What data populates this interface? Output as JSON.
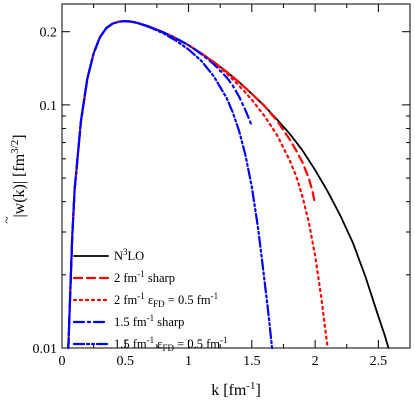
{
  "chart_data": {
    "type": "line",
    "xlabel": "k [fm",
    "xlabel_sup": "-1",
    "xlabel_end": "]",
    "ylabel": "|w(k)| [fm",
    "ylabel_sup": "3/2",
    "ylabel_end": "]",
    "xlim": [
      0,
      2.75
    ],
    "ylim": [
      0.01,
      0.26
    ],
    "y_scale": "log",
    "x_ticks": [
      {
        "value": 0,
        "label": "0"
      },
      {
        "value": 0.5,
        "label": "0.5"
      },
      {
        "value": 1,
        "label": "1"
      },
      {
        "value": 1.5,
        "label": "1.5"
      },
      {
        "value": 2,
        "label": "2"
      },
      {
        "value": 2.5,
        "label": "2.5"
      }
    ],
    "y_ticks": [
      {
        "value": 0.01,
        "label": "0.01"
      },
      {
        "value": 0.1,
        "label": "0.1"
      },
      {
        "value": 0.2,
        "label": "0.2"
      }
    ],
    "legend_position": "bottom-left",
    "series": [
      {
        "name": "N",
        "name_sup": "3",
        "name_end": "LO",
        "color": "#000000",
        "dash": "solid",
        "x": [
          0.05,
          0.08,
          0.1,
          0.15,
          0.2,
          0.25,
          0.3,
          0.35,
          0.4,
          0.45,
          0.5,
          0.55,
          0.6,
          0.7,
          0.8,
          0.9,
          1.0,
          1.1,
          1.2,
          1.3,
          1.4,
          1.5,
          1.6,
          1.7,
          1.8,
          1.9,
          2.0,
          2.1,
          2.2,
          2.3,
          2.4,
          2.5,
          2.55,
          2.58
        ],
        "y": [
          0.01,
          0.028,
          0.045,
          0.086,
          0.128,
          0.163,
          0.19,
          0.207,
          0.216,
          0.22,
          0.221,
          0.22,
          0.217,
          0.209,
          0.199,
          0.188,
          0.176,
          0.163,
          0.15,
          0.137,
          0.124,
          0.111,
          0.099,
          0.087,
          0.076,
          0.065,
          0.054,
          0.044,
          0.035,
          0.027,
          0.0195,
          0.0135,
          0.0113,
          0.01
        ]
      },
      {
        "name": "2 fm",
        "name_sup": "-1",
        "name_end": " sharp",
        "color": "#ff0000",
        "dash": "8,5",
        "x": [
          0.05,
          0.08,
          0.1,
          0.15,
          0.2,
          0.25,
          0.3,
          0.35,
          0.4,
          0.45,
          0.5,
          0.55,
          0.6,
          0.7,
          0.8,
          0.9,
          1.0,
          1.1,
          1.2,
          1.3,
          1.4,
          1.5,
          1.6,
          1.7,
          1.8,
          1.85,
          1.9,
          1.95,
          1.98,
          2.0
        ],
        "y": [
          0.01,
          0.028,
          0.045,
          0.086,
          0.128,
          0.163,
          0.19,
          0.207,
          0.216,
          0.22,
          0.221,
          0.22,
          0.217,
          0.209,
          0.199,
          0.188,
          0.176,
          0.163,
          0.15,
          0.137,
          0.124,
          0.111,
          0.099,
          0.086,
          0.072,
          0.065,
          0.058,
          0.05,
          0.044,
          0.039
        ]
      },
      {
        "name": "2 fm",
        "name_sup": "-1",
        "name_end": " ε",
        "name_sub": "FD",
        "name_tail": " = 0.5 fm",
        "name_tail_sup": "-1",
        "color": "#ff0000",
        "dash": "2,4",
        "x": [
          0.05,
          0.08,
          0.1,
          0.15,
          0.2,
          0.25,
          0.3,
          0.35,
          0.4,
          0.45,
          0.5,
          0.55,
          0.6,
          0.7,
          0.8,
          0.9,
          1.0,
          1.1,
          1.2,
          1.3,
          1.4,
          1.5,
          1.6,
          1.7,
          1.8,
          1.85,
          1.9,
          1.95,
          2.0,
          2.05,
          2.08,
          2.1
        ],
        "y": [
          0.01,
          0.028,
          0.045,
          0.086,
          0.128,
          0.163,
          0.19,
          0.207,
          0.216,
          0.22,
          0.221,
          0.22,
          0.217,
          0.209,
          0.199,
          0.188,
          0.176,
          0.163,
          0.149,
          0.135,
          0.12,
          0.105,
          0.09,
          0.075,
          0.059,
          0.051,
          0.042,
          0.033,
          0.024,
          0.016,
          0.012,
          0.01
        ]
      },
      {
        "name": "1.5 fm",
        "name_sup": "-1",
        "name_end": " sharp",
        "color": "#0000ff",
        "dash": "10,4,2,4",
        "x": [
          0.05,
          0.08,
          0.1,
          0.15,
          0.2,
          0.25,
          0.3,
          0.35,
          0.4,
          0.45,
          0.5,
          0.55,
          0.6,
          0.7,
          0.8,
          0.9,
          1.0,
          1.1,
          1.2,
          1.3,
          1.35,
          1.4,
          1.45,
          1.48,
          1.5
        ],
        "y": [
          0.01,
          0.028,
          0.045,
          0.086,
          0.128,
          0.163,
          0.19,
          0.207,
          0.216,
          0.22,
          0.221,
          0.22,
          0.217,
          0.209,
          0.199,
          0.188,
          0.176,
          0.162,
          0.147,
          0.13,
          0.12,
          0.108,
          0.095,
          0.087,
          0.082
        ]
      },
      {
        "name": "1.5 fm",
        "name_sup": "-1",
        "name_end": " ε",
        "name_sub": "FD",
        "name_tail": " = 0.5 fm",
        "name_tail_sup": "-1",
        "color": "#0000ff",
        "dash": "10,3,2,3,2,3",
        "x": [
          0.05,
          0.08,
          0.1,
          0.15,
          0.2,
          0.25,
          0.3,
          0.35,
          0.4,
          0.45,
          0.5,
          0.55,
          0.6,
          0.7,
          0.8,
          0.9,
          1.0,
          1.1,
          1.2,
          1.3,
          1.35,
          1.4,
          1.45,
          1.5,
          1.55,
          1.6,
          1.63,
          1.66
        ],
        "y": [
          0.01,
          0.028,
          0.045,
          0.086,
          0.128,
          0.163,
          0.19,
          0.207,
          0.216,
          0.22,
          0.221,
          0.22,
          0.217,
          0.208,
          0.197,
          0.184,
          0.169,
          0.152,
          0.131,
          0.107,
          0.093,
          0.078,
          0.062,
          0.046,
          0.031,
          0.019,
          0.014,
          0.01
        ]
      }
    ]
  }
}
